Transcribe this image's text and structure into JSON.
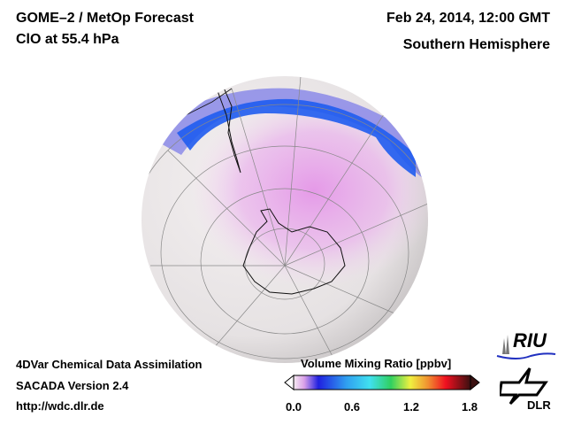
{
  "header": {
    "title": "GOME–2 / MetOp Forecast",
    "subtitle": "ClO at 55.4 hPa",
    "date": "Feb 24, 2014, 12:00 GMT",
    "region": "Southern Hemisphere"
  },
  "footer": {
    "line1": "4DVar Chemical Data Assimilation",
    "line2": "SACADA Version 2.4",
    "line3": "http://wdc.dlr.de"
  },
  "colorbar": {
    "title": "Volume Mixing Ratio [ppbv]",
    "ticks": [
      "0.0",
      "0.6",
      "1.2",
      "1.8"
    ],
    "range": [
      0.0,
      1.8
    ]
  },
  "logos": {
    "riu": "RIU",
    "dlr": "DLR"
  }
}
